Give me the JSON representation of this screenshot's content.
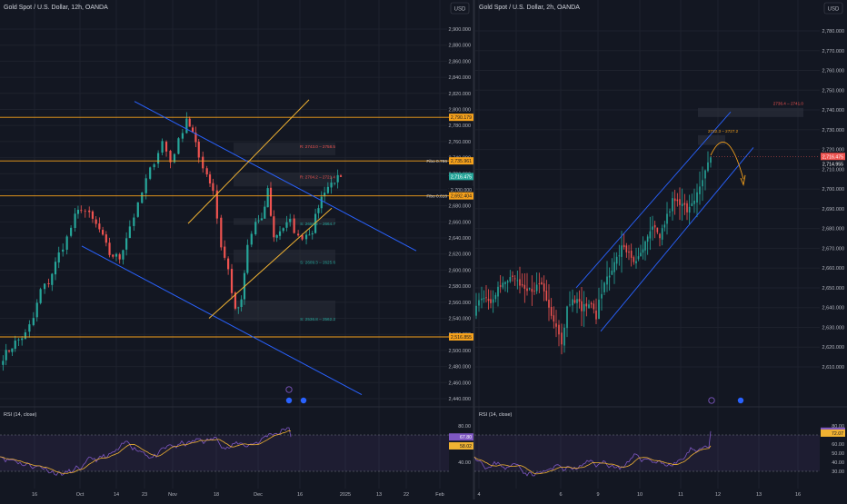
{
  "colors": {
    "bg": "#131722",
    "grid": "#1e222d",
    "up": "#26a69a",
    "down": "#ef5350",
    "fibo": "#f7a21b",
    "channel": "#2962ff",
    "rsi_line": "#7e57c2",
    "rsi_ma": "#f0b232"
  },
  "left": {
    "title": "Gold Spot / U.S. Dollar, 12h, OANDA",
    "currency": "USD",
    "price_ticks": [
      "2,900.000",
      "2,880.000",
      "2,860.000",
      "2,840.000",
      "2,820.000",
      "2,800.000",
      "2,780.000",
      "2,760.000",
      "2,740.000",
      "2,720.000",
      "2,700.000",
      "2,680.000",
      "2,660.000",
      "2,640.000",
      "2,620.000",
      "2,600.000",
      "2,580.000",
      "2,560.000",
      "2,540.000",
      "2,520.000",
      "2,500.000",
      "2,480.000",
      "2,460.000",
      "2,440.000"
    ],
    "price_tags": [
      {
        "text": "2,790.179",
        "type": "fibo"
      },
      {
        "text": "2,735.961",
        "type": "fibo"
      },
      {
        "text": "2,716.475",
        "type": "price"
      },
      {
        "text": "2,700.000",
        "type": "plain"
      },
      {
        "text": "2,692.404",
        "type": "fibo"
      },
      {
        "text": "2,516.855",
        "type": "fibo"
      }
    ],
    "fibo_labels": [
      "Fibo 0.786",
      "Fibo 0.618"
    ],
    "zones": [
      {
        "label": "R: 2743.0 – 2758.5",
        "color": "#ef5350"
      },
      {
        "label": "R: 2704.2 – 2721.4",
        "color": "#ef5350"
      },
      {
        "label": "S: 2656.2 – 2664.7",
        "color": "#26a69a"
      },
      {
        "label": "S: 2609.3 – 2625.6",
        "color": "#26a69a"
      },
      {
        "label": "S: 2536.8 – 2562.2",
        "color": "#26a69a"
      }
    ],
    "time_ticks": [
      "16",
      "Oct",
      "14",
      "23",
      "Nov",
      "18",
      "Dec",
      "16",
      "2025",
      "13",
      "22",
      "Feb"
    ],
    "rsi_title": "RSI (14, close)",
    "rsi_ticks": [
      "80.00",
      "40.00"
    ],
    "rsi_tags": [
      "67.80",
      "58.02"
    ]
  },
  "right": {
    "title": "Gold Spot / U.S. Dollar, 2h, OANDA",
    "currency": "USD",
    "price_ticks": [
      "2,780.000",
      "2,770.000",
      "2,760.000",
      "2,750.000",
      "2,740.000",
      "2,730.000",
      "2,720.000",
      "2,710.000",
      "2,700.000",
      "2,690.000",
      "2,680.000",
      "2,670.000",
      "2,660.000",
      "2,650.000",
      "2,640.000",
      "2,630.000",
      "2,620.000",
      "2,610.000"
    ],
    "price_tags": [
      {
        "text": "2,716.475",
        "type": "price"
      },
      {
        "text": "2,714.955",
        "type": "plain"
      }
    ],
    "zones": [
      {
        "label": "2736.4 – 2741.0",
        "color": "#ef5350"
      },
      {
        "label": "2722.3 – 2727.2",
        "color": "#f7a21b"
      }
    ],
    "time_ticks": [
      "4",
      "6",
      "9",
      "10",
      "11",
      "12",
      "13",
      "16"
    ],
    "rsi_title": "RSI (14, close)",
    "rsi_ticks": [
      "80.00",
      "60.00",
      "50.00",
      "40.00",
      "30.00"
    ],
    "rsi_tags": [
      "74.21",
      "72.07"
    ]
  }
}
